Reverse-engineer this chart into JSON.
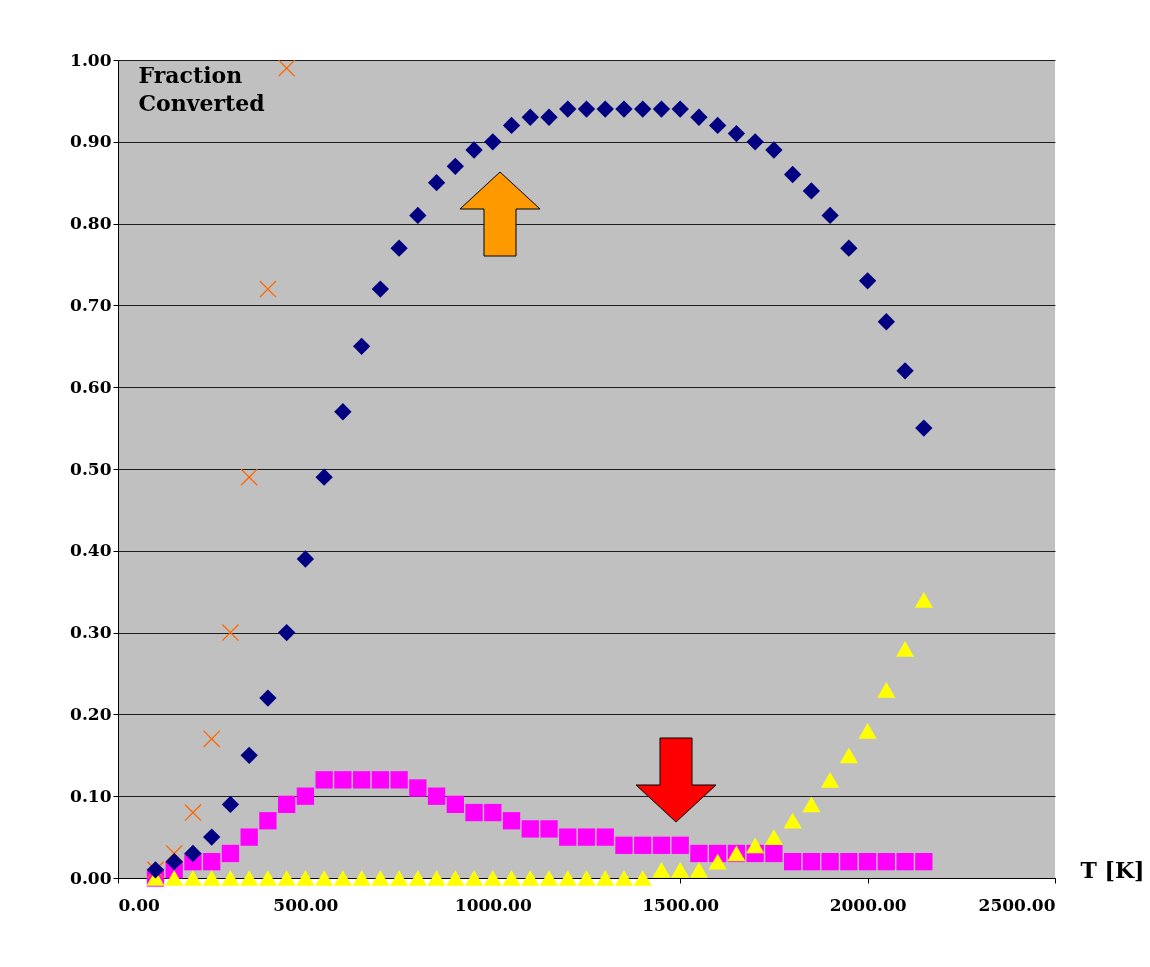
{
  "chart_data": {
    "type": "scatter",
    "ylabel": "Fraction Converted",
    "xlabel": "T [K]",
    "xlim": [
      0,
      2500
    ],
    "xticks": [
      {
        "value": 0,
        "label": "0.00"
      },
      {
        "value": 500,
        "label": "500.00"
      },
      {
        "value": 1000,
        "label": "1000.00"
      },
      {
        "value": 1500,
        "label": "1500.00"
      },
      {
        "value": 2000,
        "label": "2000.00"
      },
      {
        "value": 2500,
        "label": "2500.00"
      }
    ],
    "ylim": [
      0,
      1
    ],
    "yticks": [
      {
        "value": 0,
        "label": "0.00"
      },
      {
        "value": 0.1,
        "label": "0.10"
      },
      {
        "value": 0.2,
        "label": "0.20"
      },
      {
        "value": 0.3,
        "label": "0.30"
      },
      {
        "value": 0.4,
        "label": "0.40"
      },
      {
        "value": 0.5,
        "label": "0.50"
      },
      {
        "value": 0.6,
        "label": "0.60"
      },
      {
        "value": 0.7,
        "label": "0.70"
      },
      {
        "value": 0.8,
        "label": "0.80"
      },
      {
        "value": 0.9,
        "label": "0.90"
      },
      {
        "value": 1,
        "label": "1.00"
      }
    ],
    "grid": "y",
    "x": [
      100,
      150,
      200,
      250,
      300,
      350,
      400,
      450,
      500,
      550,
      600,
      650,
      700,
      750,
      800,
      850,
      900,
      950,
      1000,
      1050,
      1100,
      1150,
      1200,
      1250,
      1300,
      1350,
      1400,
      1450,
      1500,
      1550,
      1600,
      1650,
      1700,
      1750,
      1800,
      1850,
      1900,
      1950,
      2000,
      2050,
      2100,
      2150
    ],
    "series": [
      {
        "color": "#000080",
        "marker": "diamond",
        "values": [
          0.01,
          0.02,
          0.03,
          0.05,
          0.09,
          0.15,
          0.22,
          0.3,
          0.39,
          0.49,
          0.57,
          0.65,
          0.72,
          0.77,
          0.81,
          0.85,
          0.87,
          0.89,
          0.9,
          0.92,
          0.93,
          0.93,
          0.94,
          0.94,
          0.94,
          0.94,
          0.94,
          0.94,
          0.94,
          0.93,
          0.92,
          0.91,
          0.9,
          0.89,
          0.86,
          0.84,
          0.81,
          0.77,
          0.73,
          0.68,
          0.62,
          0.55
        ]
      },
      {
        "color": "#ff00ff",
        "marker": "square",
        "values": [
          0.0,
          0.01,
          0.02,
          0.02,
          0.03,
          0.05,
          0.07,
          0.09,
          0.1,
          0.12,
          0.12,
          0.12,
          0.12,
          0.12,
          0.11,
          0.1,
          0.09,
          0.08,
          0.08,
          0.07,
          0.06,
          0.06,
          0.05,
          0.05,
          0.05,
          0.04,
          0.04,
          0.04,
          0.04,
          0.03,
          0.03,
          0.03,
          0.03,
          0.03,
          0.02,
          0.02,
          0.02,
          0.02,
          0.02,
          0.02,
          0.02,
          0.02
        ]
      },
      {
        "color": "#ffff00",
        "marker": "triangle",
        "values": [
          0,
          0,
          0,
          0,
          0,
          0,
          0,
          0,
          0,
          0,
          0,
          0,
          0,
          0,
          0,
          0,
          0,
          0,
          0,
          0,
          0,
          0,
          0,
          0,
          0,
          0.0,
          0.0,
          0.01,
          0.01,
          0.01,
          0.02,
          0.03,
          0.04,
          0.05,
          0.07,
          0.09,
          0.12,
          0.15,
          0.18,
          0.23,
          0.28,
          0.34
        ]
      },
      {
        "color": "#ff6600",
        "marker": "cross",
        "x": [
          100,
          150,
          200,
          250,
          300,
          350,
          400,
          450
        ],
        "values": [
          0.01,
          0.03,
          0.08,
          0.17,
          0.3,
          0.49,
          0.72,
          0.99
        ]
      }
    ]
  }
}
